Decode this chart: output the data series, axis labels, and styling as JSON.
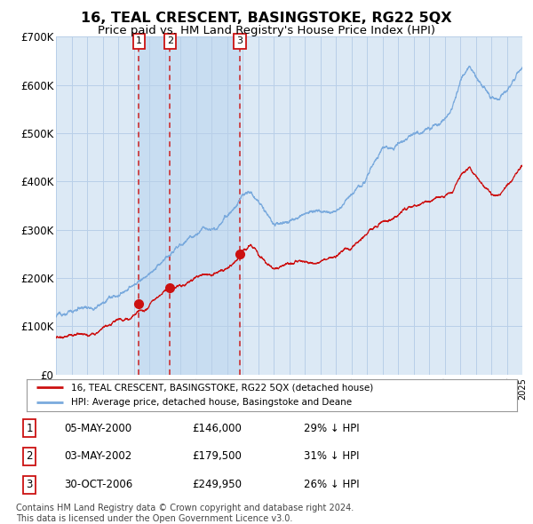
{
  "title": "16, TEAL CRESCENT, BASINGSTOKE, RG22 5QX",
  "subtitle": "Price paid vs. HM Land Registry's House Price Index (HPI)",
  "title_fontsize": 11.5,
  "subtitle_fontsize": 9.5,
  "background_color": "#ffffff",
  "plot_bg_color": "#dce9f5",
  "grid_color": "#b8cfe8",
  "hpi_line_color": "#7aaadd",
  "price_line_color": "#cc1111",
  "sale_marker_color": "#cc1111",
  "dashed_line_color": "#cc2222",
  "label_box_color": "#cc1111",
  "ylim": [
    0,
    700000
  ],
  "yticks": [
    0,
    100000,
    200000,
    300000,
    400000,
    500000,
    600000,
    700000
  ],
  "ytick_labels": [
    "£0",
    "£100K",
    "£200K",
    "£300K",
    "£400K",
    "£500K",
    "£600K",
    "£700K"
  ],
  "sale_dates": [
    2000.34,
    2002.34,
    2006.83
  ],
  "sale_prices": [
    146000,
    179500,
    249950
  ],
  "sale_labels": [
    "1",
    "2",
    "3"
  ],
  "legend_entries": [
    "16, TEAL CRESCENT, BASINGSTOKE, RG22 5QX (detached house)",
    "HPI: Average price, detached house, Basingstoke and Deane"
  ],
  "table_rows": [
    {
      "label": "1",
      "date": "05-MAY-2000",
      "price": "£146,000",
      "hpi": "29% ↓ HPI"
    },
    {
      "label": "2",
      "date": "03-MAY-2002",
      "price": "£179,500",
      "hpi": "31% ↓ HPI"
    },
    {
      "label": "3",
      "date": "30-OCT-2006",
      "price": "£249,950",
      "hpi": "26% ↓ HPI"
    }
  ],
  "footer": "Contains HM Land Registry data © Crown copyright and database right 2024.\nThis data is licensed under the Open Government Licence v3.0.",
  "footer_fontsize": 7.0,
  "hpi_anchors_t": [
    1995,
    1996,
    1997,
    1998,
    1999,
    2000,
    2001,
    2002,
    2003,
    2004,
    2005,
    2006,
    2006.5,
    2007,
    2007.5,
    2008,
    2008.5,
    2009,
    2010,
    2011,
    2012,
    2013,
    2014,
    2015,
    2016,
    2017,
    2018,
    2019,
    2019.5,
    2020,
    2020.5,
    2021,
    2021.3,
    2021.6,
    2022,
    2022.5,
    2023,
    2023.5,
    2024,
    2024.5,
    2025
  ],
  "hpi_anchors_v": [
    120000,
    132000,
    143000,
    156000,
    170000,
    190000,
    215000,
    238000,
    268000,
    298000,
    318000,
    338000,
    358000,
    385000,
    392000,
    368000,
    340000,
    310000,
    318000,
    325000,
    330000,
    340000,
    368000,
    408000,
    462000,
    478000,
    488000,
    498000,
    508000,
    515000,
    530000,
    592000,
    608000,
    615000,
    590000,
    568000,
    550000,
    548000,
    568000,
    590000,
    618000
  ],
  "price_anchors_t": [
    1995,
    1996,
    1997,
    1998,
    1999,
    2000,
    2001,
    2002,
    2003,
    2004,
    2005,
    2006,
    2006.5,
    2007,
    2007.5,
    2008,
    2008.5,
    2009,
    2010,
    2011,
    2012,
    2013,
    2014,
    2015,
    2016,
    2017,
    2018,
    2019,
    2019.5,
    2020,
    2020.5,
    2021,
    2021.3,
    2021.6,
    2022,
    2022.5,
    2023,
    2023.5,
    2024,
    2024.5,
    2025
  ],
  "price_anchors_v": [
    75000,
    83000,
    90000,
    100000,
    110000,
    122000,
    140000,
    160000,
    180000,
    200000,
    215000,
    232000,
    248000,
    265000,
    278000,
    260000,
    242000,
    228000,
    232000,
    238000,
    242000,
    252000,
    272000,
    302000,
    342000,
    358000,
    368000,
    375000,
    382000,
    388000,
    398000,
    438000,
    452000,
    460000,
    442000,
    418000,
    402000,
    398000,
    412000,
    428000,
    450000
  ]
}
